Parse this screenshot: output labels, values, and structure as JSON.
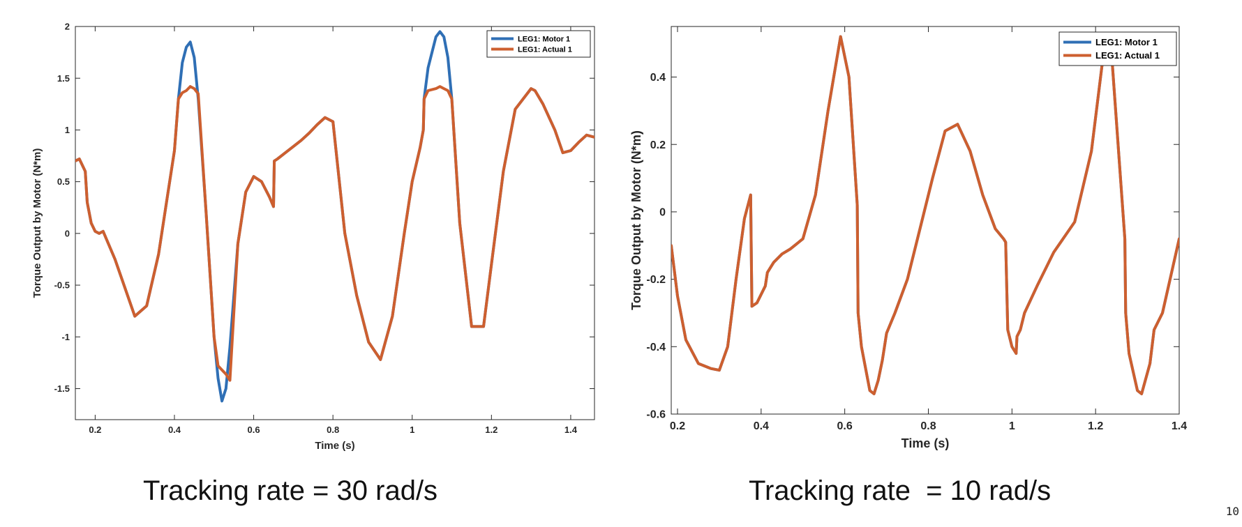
{
  "colors": {
    "motor": "#2f6fb5",
    "actual": "#cd5f2f",
    "axis": "#262626",
    "background": "#ffffff"
  },
  "page_number": "10",
  "captions": {
    "left": "Tracking rate = 30 rad/s",
    "right": "Tracking rate  = 10 rad/s"
  },
  "chart_data": [
    {
      "type": "line",
      "xlabel": "Time (s)",
      "ylabel": "Torque Output by Motor (N*m)",
      "xlim": [
        0.15,
        1.46
      ],
      "ylim": [
        -1.8,
        2.0
      ],
      "xticks": [
        0.2,
        0.4,
        0.6,
        0.8,
        1,
        1.2,
        1.4
      ],
      "yticks": [
        -1.5,
        -1,
        -0.5,
        0,
        0.5,
        1,
        1.5,
        2
      ],
      "legend_position": "top-right",
      "grid": false,
      "series": [
        {
          "name": "LEG1: Motor 1",
          "color": "#2f6fb5",
          "x": [
            0.15,
            0.16,
            0.175,
            0.18,
            0.19,
            0.2,
            0.21,
            0.22,
            0.25,
            0.3,
            0.33,
            0.36,
            0.38,
            0.4,
            0.41,
            0.42,
            0.43,
            0.44,
            0.45,
            0.46,
            0.48,
            0.5,
            0.51,
            0.52,
            0.53,
            0.54,
            0.56,
            0.58,
            0.6,
            0.62,
            0.64,
            0.65,
            0.652,
            0.66,
            0.68,
            0.7,
            0.72,
            0.74,
            0.76,
            0.78,
            0.8,
            0.83,
            0.86,
            0.89,
            0.92,
            0.95,
            0.98,
            1.0,
            1.02,
            1.028,
            1.03,
            1.04,
            1.06,
            1.07,
            1.08,
            1.09,
            1.1,
            1.12,
            1.15,
            1.18,
            1.2,
            1.23,
            1.26,
            1.3,
            1.31,
            1.33,
            1.36,
            1.38,
            1.4,
            1.42,
            1.44,
            1.46
          ],
          "y": [
            0.7,
            0.72,
            0.6,
            0.3,
            0.1,
            0.02,
            0.0,
            0.02,
            -0.25,
            -0.8,
            -0.7,
            -0.2,
            0.3,
            0.8,
            1.3,
            1.65,
            1.8,
            1.85,
            1.7,
            1.3,
            0.2,
            -1.0,
            -1.4,
            -1.62,
            -1.5,
            -1.1,
            -0.1,
            0.4,
            0.55,
            0.5,
            0.35,
            0.26,
            0.7,
            0.72,
            0.78,
            0.84,
            0.9,
            0.97,
            1.05,
            1.12,
            1.08,
            0.0,
            -0.6,
            -1.05,
            -1.22,
            -0.8,
            0.0,
            0.5,
            0.83,
            1.0,
            1.3,
            1.6,
            1.9,
            1.95,
            1.9,
            1.7,
            1.3,
            0.1,
            -0.9,
            -0.9,
            -0.3,
            0.6,
            1.2,
            1.4,
            1.38,
            1.25,
            1.0,
            0.78,
            0.8,
            0.88,
            0.95,
            0.93
          ]
        },
        {
          "name": "LEG1: Actual 1",
          "color": "#cd5f2f",
          "x": [
            0.15,
            0.16,
            0.175,
            0.18,
            0.19,
            0.2,
            0.21,
            0.22,
            0.25,
            0.3,
            0.33,
            0.36,
            0.38,
            0.4,
            0.41,
            0.42,
            0.43,
            0.44,
            0.45,
            0.46,
            0.48,
            0.5,
            0.51,
            0.52,
            0.53,
            0.54,
            0.56,
            0.58,
            0.6,
            0.62,
            0.64,
            0.65,
            0.652,
            0.66,
            0.68,
            0.7,
            0.72,
            0.74,
            0.76,
            0.78,
            0.8,
            0.83,
            0.86,
            0.89,
            0.92,
            0.95,
            0.98,
            1.0,
            1.02,
            1.028,
            1.03,
            1.04,
            1.06,
            1.07,
            1.08,
            1.09,
            1.1,
            1.12,
            1.15,
            1.18,
            1.2,
            1.23,
            1.26,
            1.3,
            1.31,
            1.33,
            1.36,
            1.38,
            1.4,
            1.42,
            1.44,
            1.46
          ],
          "y": [
            0.7,
            0.72,
            0.6,
            0.3,
            0.1,
            0.02,
            0.0,
            0.02,
            -0.25,
            -0.8,
            -0.7,
            -0.2,
            0.3,
            0.8,
            1.3,
            1.36,
            1.38,
            1.42,
            1.4,
            1.35,
            0.2,
            -1.0,
            -1.28,
            -1.32,
            -1.36,
            -1.42,
            -0.1,
            0.4,
            0.55,
            0.5,
            0.35,
            0.26,
            0.7,
            0.72,
            0.78,
            0.84,
            0.9,
            0.97,
            1.05,
            1.12,
            1.08,
            0.0,
            -0.6,
            -1.05,
            -1.22,
            -0.8,
            0.0,
            0.5,
            0.83,
            1.0,
            1.3,
            1.38,
            1.4,
            1.42,
            1.4,
            1.38,
            1.3,
            0.1,
            -0.9,
            -0.9,
            -0.3,
            0.6,
            1.2,
            1.4,
            1.38,
            1.25,
            1.0,
            0.78,
            0.8,
            0.88,
            0.95,
            0.93
          ]
        }
      ]
    },
    {
      "type": "line",
      "xlabel": "Time (s)",
      "ylabel": "Torque Output by Motor (N*m)",
      "xlim": [
        0.185,
        1.4
      ],
      "ylim": [
        -0.6,
        0.55
      ],
      "xticks": [
        0.2,
        0.4,
        0.6,
        0.8,
        1,
        1.2,
        1.4
      ],
      "yticks": [
        -0.6,
        -0.4,
        -0.2,
        0,
        0.2,
        0.4
      ],
      "legend_position": "top-right",
      "grid": false,
      "series": [
        {
          "name": "LEG1: Motor 1",
          "color": "#2f6fb5",
          "x": [
            0.185,
            0.2,
            0.22,
            0.25,
            0.28,
            0.3,
            0.32,
            0.34,
            0.36,
            0.375,
            0.378,
            0.39,
            0.41,
            0.415,
            0.43,
            0.45,
            0.47,
            0.5,
            0.53,
            0.56,
            0.59,
            0.61,
            0.63,
            0.632,
            0.64,
            0.66,
            0.67,
            0.68,
            0.69,
            0.7,
            0.72,
            0.75,
            0.78,
            0.81,
            0.84,
            0.87,
            0.9,
            0.93,
            0.96,
            0.98,
            0.985,
            0.99,
            1.0,
            1.01,
            1.012,
            1.02,
            1.03,
            1.06,
            1.1,
            1.15,
            1.19,
            1.22,
            1.24,
            1.27,
            1.272,
            1.28,
            1.3,
            1.31,
            1.33,
            1.34,
            1.36,
            1.4
          ],
          "y": [
            -0.1,
            -0.25,
            -0.38,
            -0.45,
            -0.465,
            -0.47,
            -0.4,
            -0.2,
            -0.02,
            0.05,
            -0.28,
            -0.27,
            -0.22,
            -0.18,
            -0.15,
            -0.125,
            -0.11,
            -0.08,
            0.05,
            0.3,
            0.52,
            0.4,
            0.02,
            -0.3,
            -0.4,
            -0.53,
            -0.54,
            -0.5,
            -0.44,
            -0.36,
            -0.3,
            -0.2,
            -0.05,
            0.1,
            0.24,
            0.26,
            0.18,
            0.05,
            -0.05,
            -0.08,
            -0.09,
            -0.35,
            -0.4,
            -0.42,
            -0.37,
            -0.35,
            -0.3,
            -0.22,
            -0.12,
            -0.03,
            0.18,
            0.48,
            0.44,
            -0.08,
            -0.3,
            -0.42,
            -0.53,
            -0.54,
            -0.45,
            -0.35,
            -0.3,
            -0.08
          ]
        },
        {
          "name": "LEG1: Actual 1",
          "color": "#cd5f2f",
          "x": [
            0.185,
            0.2,
            0.22,
            0.25,
            0.28,
            0.3,
            0.32,
            0.34,
            0.36,
            0.375,
            0.378,
            0.39,
            0.41,
            0.415,
            0.43,
            0.45,
            0.47,
            0.5,
            0.53,
            0.56,
            0.59,
            0.61,
            0.63,
            0.632,
            0.64,
            0.66,
            0.67,
            0.68,
            0.69,
            0.7,
            0.72,
            0.75,
            0.78,
            0.81,
            0.84,
            0.87,
            0.9,
            0.93,
            0.96,
            0.98,
            0.985,
            0.99,
            1.0,
            1.01,
            1.012,
            1.02,
            1.03,
            1.06,
            1.1,
            1.15,
            1.19,
            1.22,
            1.24,
            1.27,
            1.272,
            1.28,
            1.3,
            1.31,
            1.33,
            1.34,
            1.36,
            1.4
          ],
          "y": [
            -0.1,
            -0.25,
            -0.38,
            -0.45,
            -0.465,
            -0.47,
            -0.4,
            -0.2,
            -0.02,
            0.05,
            -0.28,
            -0.27,
            -0.22,
            -0.18,
            -0.15,
            -0.125,
            -0.11,
            -0.08,
            0.05,
            0.3,
            0.52,
            0.4,
            0.02,
            -0.3,
            -0.4,
            -0.53,
            -0.54,
            -0.5,
            -0.44,
            -0.36,
            -0.3,
            -0.2,
            -0.05,
            0.1,
            0.24,
            0.26,
            0.18,
            0.05,
            -0.05,
            -0.08,
            -0.09,
            -0.35,
            -0.4,
            -0.42,
            -0.37,
            -0.35,
            -0.3,
            -0.22,
            -0.12,
            -0.03,
            0.18,
            0.48,
            0.44,
            -0.08,
            -0.3,
            -0.42,
            -0.53,
            -0.54,
            -0.45,
            -0.35,
            -0.3,
            -0.08
          ]
        }
      ]
    }
  ]
}
